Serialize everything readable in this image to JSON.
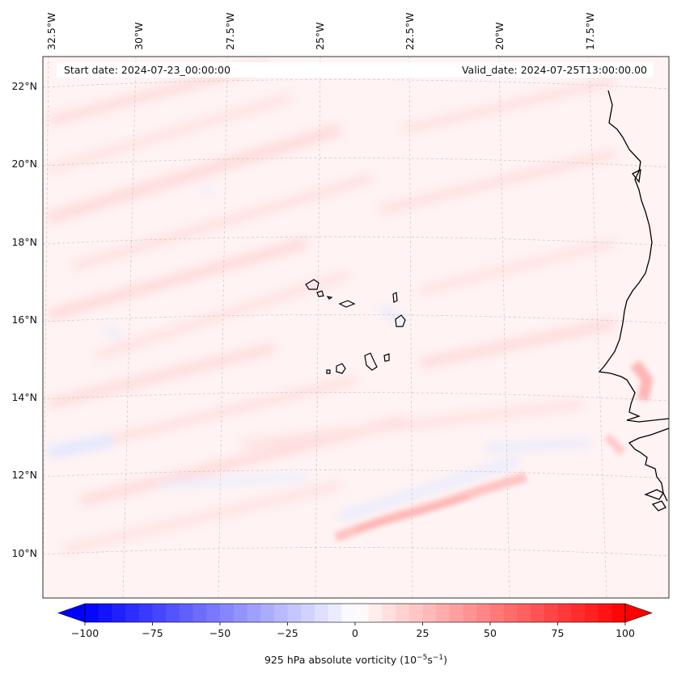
{
  "map": {
    "start_date": "Start date: 2024-07-23_00:00:00",
    "valid_date": "Valid_date: 2024-07-25T13:00:00.00",
    "lon_labels": [
      "32.5°W",
      "30°W",
      "27.5°W",
      "25°W",
      "22.5°W",
      "20°W",
      "17.5°W"
    ],
    "lat_labels": [
      "22°N",
      "20°N",
      "18°N",
      "16°N",
      "14°N",
      "12°N",
      "10°N"
    ],
    "colors": {
      "negative_max": "#0000ff",
      "positive_max": "#ff0000",
      "zero": "#ffffff",
      "coastline": "#000000",
      "gridline": "#bbbbbb"
    }
  },
  "colorbar": {
    "label": "925 hPa absolute vorticity (10",
    "label_exp1": "−5",
    "label_mid": "s",
    "label_exp2": "−1",
    "label_end": ")",
    "min": -100,
    "max": 100,
    "tick_labels": [
      "−100",
      "−75",
      "−50",
      "−25",
      "0",
      "25",
      "50",
      "75",
      "100"
    ]
  },
  "features": [
    "Cape Verde islands",
    "West African coastline"
  ]
}
